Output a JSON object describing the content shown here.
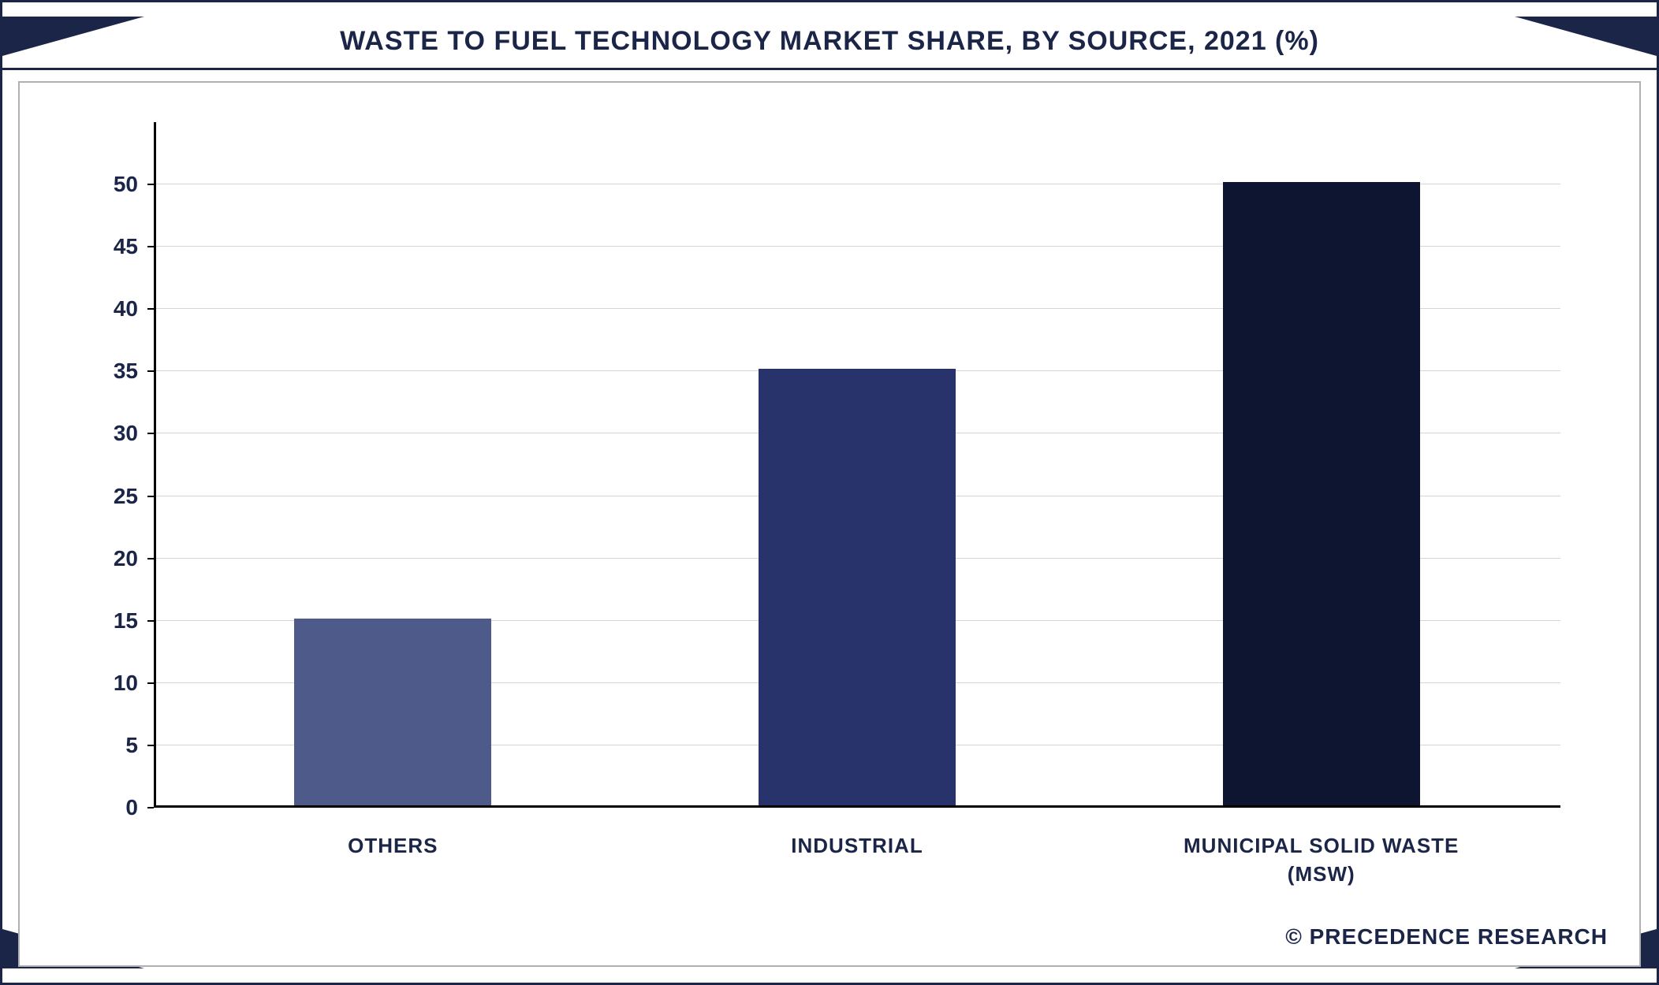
{
  "chart": {
    "type": "bar",
    "title": "WASTE TO FUEL TECHNOLOGY MARKET SHARE, BY SOURCE, 2021 (%)",
    "categories": [
      "OTHERS",
      "INDUSTRIAL",
      "MUNICIPAL SOLID WASTE (MSW)"
    ],
    "values": [
      15,
      35,
      50
    ],
    "bar_colors": [
      "#4d5a8a",
      "#27336a",
      "#0e1530"
    ],
    "ylim_min": 0,
    "ylim_max": 55,
    "ytick_step": 5,
    "yticks": [
      0,
      5,
      10,
      15,
      20,
      25,
      30,
      35,
      40,
      45,
      50
    ],
    "background_color": "#ffffff",
    "grid_color": "#d5d5d5",
    "axis_color": "#000000",
    "bar_width_pct": 14,
    "bar_positions_pct": [
      17,
      50,
      83
    ],
    "title_fontsize": 34,
    "label_fontsize": 26,
    "tick_fontsize": 28,
    "frame_color": "#1a2548"
  },
  "credit": "© PRECEDENCE RESEARCH"
}
